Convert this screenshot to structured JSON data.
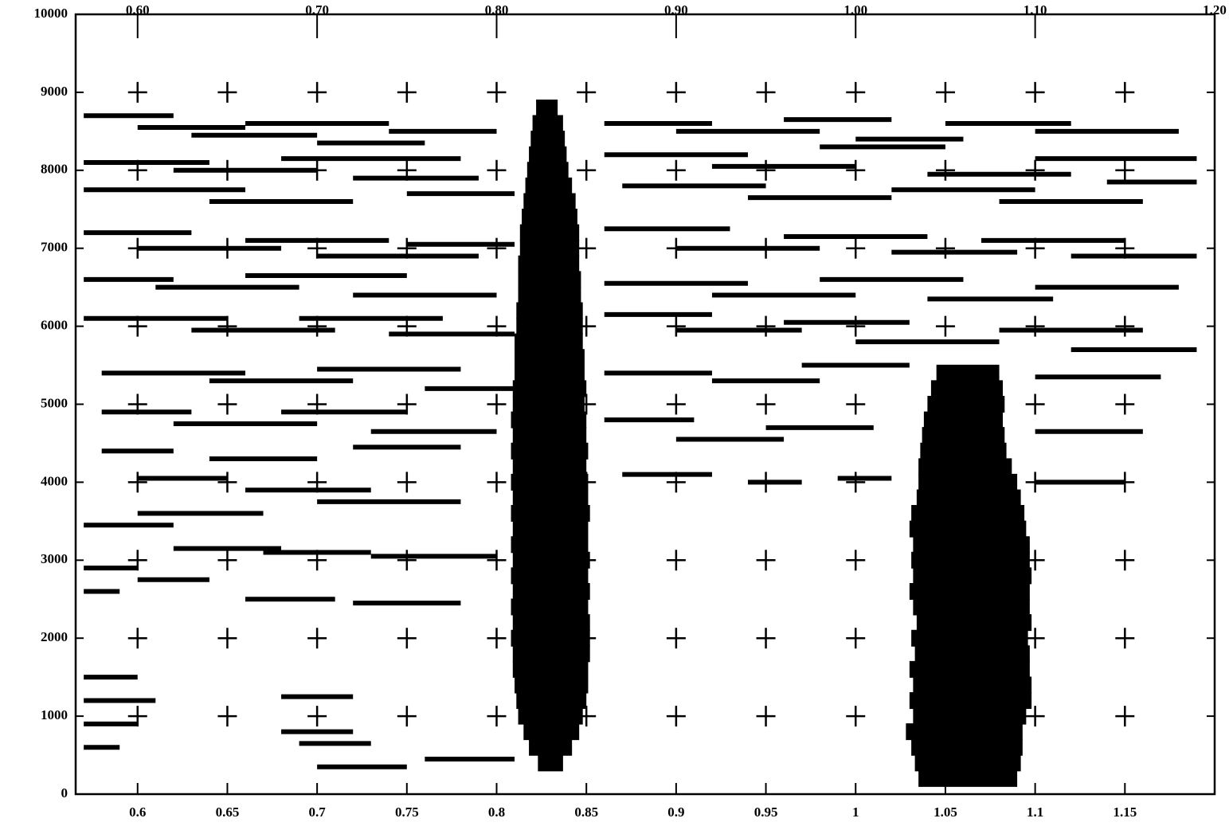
{
  "chart_data": {
    "type": "scatter",
    "xlim": [
      0.5655,
      1.2
    ],
    "ylim": [
      0,
      10000
    ],
    "xticks": [
      0.6,
      0.65,
      0.7,
      0.75,
      0.8,
      0.85,
      0.9,
      0.95,
      1,
      1.05,
      1.1,
      1.15
    ],
    "x2ticks": [
      {
        "value": 0.6,
        "label": "0.60"
      },
      {
        "value": 0.7,
        "label": "0.70"
      },
      {
        "value": 0.8,
        "label": "0.80"
      },
      {
        "value": 0.9,
        "label": "0.90"
      },
      {
        "value": 1.0,
        "label": "1.00"
      },
      {
        "value": 1.1,
        "label": "1.10"
      },
      {
        "value": 1.2,
        "label": "1.20"
      }
    ],
    "yticks": [
      0,
      1000,
      2000,
      3000,
      4000,
      5000,
      6000,
      7000,
      8000,
      9000,
      10000
    ],
    "grid": "crosses",
    "series": [
      {
        "color": "#000000",
        "x_start": [
          0.57,
          0.6,
          0.63,
          0.66,
          0.7,
          0.74,
          0.57,
          0.62,
          0.68,
          0.72,
          0.57,
          0.64,
          0.75,
          0.86,
          0.9,
          0.96,
          1.0,
          1.05,
          1.1,
          0.86,
          0.92,
          0.98,
          1.04,
          1.1,
          0.87,
          0.94,
          1.02,
          1.08,
          1.14,
          0.57,
          0.6,
          0.66,
          0.7,
          0.75,
          0.86,
          0.9,
          0.96,
          1.02,
          1.07,
          1.12,
          0.57,
          0.61,
          0.66,
          0.72,
          0.86,
          0.92,
          0.98,
          1.04,
          1.1,
          0.57,
          0.63,
          0.69,
          0.74,
          0.86,
          0.9,
          0.96,
          1.0,
          1.08,
          1.12,
          0.58,
          0.64,
          0.7,
          0.76,
          0.86,
          0.92,
          0.97,
          1.1,
          0.58,
          0.62,
          0.68,
          0.73,
          0.86,
          0.9,
          0.95,
          1.1,
          0.58,
          0.64,
          0.72,
          0.87,
          0.94,
          0.99,
          1.1,
          0.6,
          0.66,
          0.7,
          0.6,
          0.57,
          0.62,
          0.67,
          0.73,
          0.57,
          0.57,
          0.6,
          0.66,
          0.72,
          0.57,
          0.57,
          0.57,
          0.57,
          0.68,
          0.68,
          0.69,
          0.7,
          0.76
        ],
        "x_end": [
          0.62,
          0.66,
          0.7,
          0.74,
          0.76,
          0.8,
          0.64,
          0.7,
          0.78,
          0.79,
          0.66,
          0.72,
          0.81,
          0.92,
          0.98,
          1.02,
          1.06,
          1.12,
          1.18,
          0.94,
          1.0,
          1.05,
          1.12,
          1.19,
          0.95,
          1.02,
          1.1,
          1.16,
          1.19,
          0.63,
          0.68,
          0.74,
          0.79,
          0.81,
          0.93,
          0.98,
          1.04,
          1.09,
          1.15,
          1.19,
          0.62,
          0.69,
          0.75,
          0.8,
          0.94,
          1.0,
          1.06,
          1.11,
          1.18,
          0.65,
          0.71,
          0.77,
          0.81,
          0.92,
          0.97,
          1.03,
          1.08,
          1.16,
          1.19,
          0.66,
          0.72,
          0.78,
          0.81,
          0.92,
          0.98,
          1.03,
          1.17,
          0.63,
          0.7,
          0.75,
          0.8,
          0.91,
          0.96,
          1.01,
          1.16,
          0.62,
          0.7,
          0.78,
          0.92,
          0.97,
          1.02,
          1.15,
          0.65,
          0.73,
          0.78,
          0.67,
          0.62,
          0.68,
          0.73,
          0.8,
          0.6,
          0.59,
          0.64,
          0.71,
          0.78,
          0.6,
          0.61,
          0.6,
          0.59,
          0.72,
          0.72,
          0.73,
          0.75,
          0.81
        ],
        "values": [
          8700,
          8550,
          8450,
          8600,
          8350,
          8500,
          8100,
          8000,
          8150,
          7900,
          7750,
          7600,
          7700,
          8600,
          8500,
          8650,
          8400,
          8600,
          8500,
          8200,
          8050,
          8300,
          7950,
          8150,
          7800,
          7650,
          7750,
          7600,
          7850,
          7200,
          7000,
          7100,
          6900,
          7050,
          7250,
          7000,
          7150,
          6950,
          7100,
          6900,
          6600,
          6500,
          6650,
          6400,
          6550,
          6400,
          6600,
          6350,
          6500,
          6100,
          5950,
          6100,
          5900,
          6150,
          5950,
          6050,
          5800,
          5950,
          5700,
          5400,
          5300,
          5450,
          5200,
          5400,
          5300,
          5500,
          5350,
          4900,
          4750,
          4900,
          4650,
          4800,
          4550,
          4700,
          4650,
          4400,
          4300,
          4450,
          4100,
          4000,
          4050,
          4000,
          4050,
          3900,
          3750,
          3600,
          3450,
          3150,
          3100,
          3050,
          2900,
          2600,
          2750,
          2500,
          2450,
          1500,
          1200,
          900,
          600,
          1250,
          800,
          650,
          350,
          450
        ]
      },
      {
        "color": "#000000",
        "x_start": [
          0.823,
          0.818,
          0.815,
          0.812,
          0.811,
          0.81,
          0.809,
          0.809,
          0.808,
          0.809,
          0.808,
          0.809,
          0.808,
          0.809,
          0.808,
          0.809,
          0.808,
          0.809,
          0.808,
          0.809,
          0.808,
          0.809,
          0.808,
          0.809,
          0.809,
          0.81,
          0.81,
          0.81,
          0.811,
          0.811,
          0.812,
          0.812,
          0.812,
          0.813,
          0.813,
          0.814,
          0.815,
          0.816,
          0.817,
          0.818,
          0.819,
          0.82,
          0.822
        ],
        "x_end": [
          0.837,
          0.842,
          0.846,
          0.848,
          0.85,
          0.851,
          0.851,
          0.852,
          0.852,
          0.852,
          0.851,
          0.852,
          0.851,
          0.852,
          0.851,
          0.851,
          0.852,
          0.851,
          0.851,
          0.85,
          0.851,
          0.85,
          0.85,
          0.849,
          0.85,
          0.849,
          0.849,
          0.848,
          0.848,
          0.848,
          0.847,
          0.847,
          0.846,
          0.846,
          0.846,
          0.845,
          0.844,
          0.842,
          0.84,
          0.839,
          0.838,
          0.837,
          0.834
        ],
        "values": [
          400,
          600,
          800,
          1000,
          1200,
          1400,
          1600,
          1800,
          2000,
          2200,
          2400,
          2600,
          2800,
          3000,
          3200,
          3400,
          3600,
          3800,
          4000,
          4200,
          4400,
          4600,
          4800,
          5000,
          5200,
          5400,
          5600,
          5800,
          6000,
          6200,
          6400,
          6600,
          6800,
          7000,
          7200,
          7400,
          7600,
          7800,
          8000,
          8200,
          8400,
          8600,
          8800
        ]
      },
      {
        "color": "#000000",
        "x_start": [
          1.035,
          1.033,
          1.031,
          1.028,
          1.032,
          1.03,
          1.032,
          1.03,
          1.033,
          1.031,
          1.034,
          1.032,
          1.03,
          1.032,
          1.031,
          1.032,
          1.03,
          1.031,
          1.034,
          1.035,
          1.035,
          1.036,
          1.037,
          1.038,
          1.04,
          1.042,
          1.045
        ],
        "x_end": [
          1.09,
          1.092,
          1.093,
          1.093,
          1.095,
          1.098,
          1.098,
          1.097,
          1.097,
          1.096,
          1.098,
          1.097,
          1.097,
          1.098,
          1.097,
          1.097,
          1.095,
          1.094,
          1.092,
          1.09,
          1.087,
          1.084,
          1.083,
          1.082,
          1.083,
          1.082,
          1.08
        ],
        "values": [
          200,
          400,
          600,
          800,
          1000,
          1200,
          1400,
          1600,
          1800,
          2000,
          2200,
          2400,
          2600,
          2800,
          3000,
          3200,
          3400,
          3600,
          3800,
          4000,
          4200,
          4400,
          4600,
          4800,
          5000,
          5200,
          5400
        ]
      }
    ]
  }
}
